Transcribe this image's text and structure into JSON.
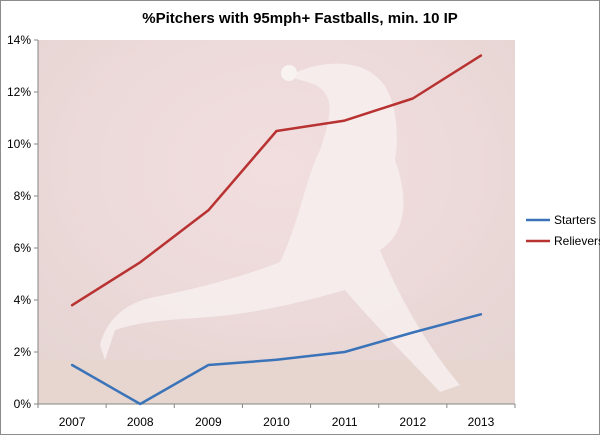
{
  "chart_data": {
    "type": "line",
    "title": "%Pitchers with 95mph+ Fastballs, min. 10 IP",
    "xlabel": "",
    "ylabel": "",
    "categories": [
      "2007",
      "2008",
      "2009",
      "2010",
      "2011",
      "2012",
      "2013"
    ],
    "ylim": [
      0,
      14
    ],
    "yticks": [
      "0%",
      "2%",
      "4%",
      "6%",
      "8%",
      "10%",
      "12%",
      "14%"
    ],
    "grid": false,
    "legend_position": "right",
    "background_image": "baseball-pitcher-photo",
    "series": [
      {
        "name": "Starters",
        "color": "#3b73b9",
        "values": [
          1.5,
          0.0,
          1.5,
          1.7,
          2.0,
          2.75,
          3.45
        ]
      },
      {
        "name": "Relievers",
        "color": "#b83232",
        "values": [
          3.8,
          5.45,
          7.45,
          10.5,
          10.9,
          11.75,
          13.4
        ]
      }
    ]
  }
}
